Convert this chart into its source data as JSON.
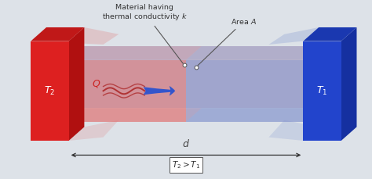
{
  "fig_bg": "#dde2e8",
  "red_front": "#dd2020",
  "red_top": "#c01818",
  "red_side": "#b01010",
  "blue_front": "#2244cc",
  "blue_top": "#1a38b0",
  "blue_side": "#1530a0",
  "tunnel_red_fill": "#e07070",
  "tunnel_blue_fill": "#8090cc",
  "tunnel_center_fill": "#b090b8",
  "arrow_color": "#3355cc",
  "wavy_color": "#aa2222",
  "text_dark": "#333333",
  "text_white": "#ffffff",
  "annot_color": "#555555",
  "Q_color": "#cc2222",
  "label_T2": "$T_2$",
  "label_T1": "$T_1$",
  "label_Q": "$Q$",
  "label_d": "$d$",
  "label_material": "Material having\nthermal conductivity $k$",
  "label_area": "Area $A$",
  "label_ineq": "$T_2 > T_1$",
  "xlim": [
    0,
    10
  ],
  "ylim": [
    0,
    5
  ]
}
